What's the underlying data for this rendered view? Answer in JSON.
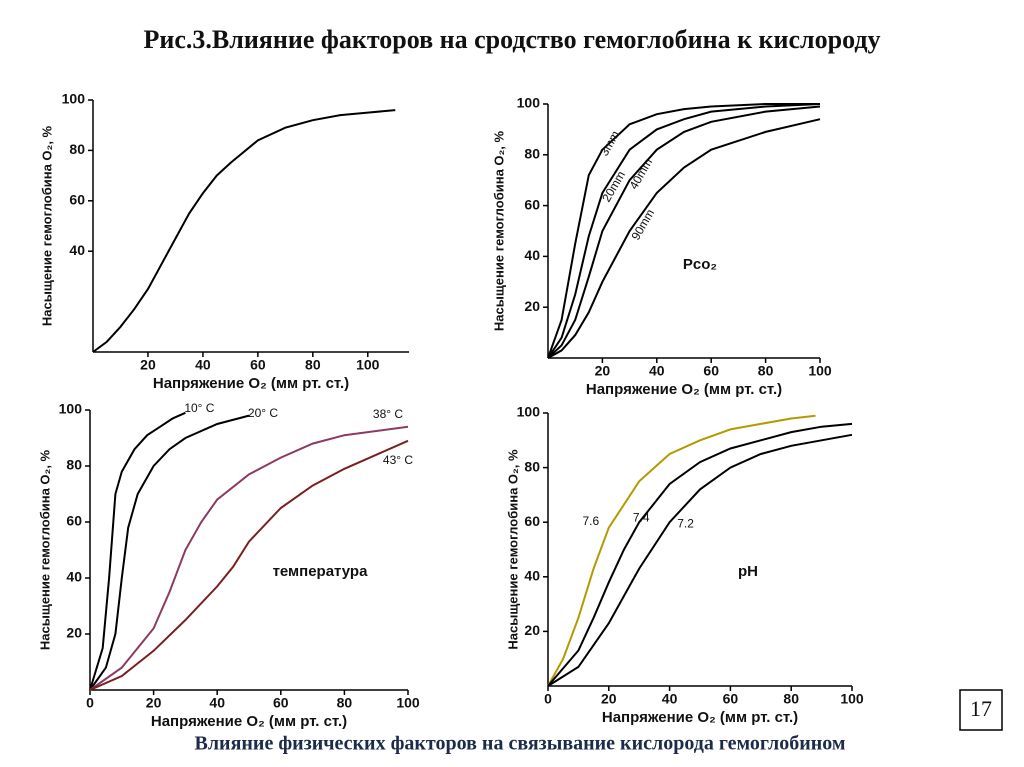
{
  "title": "Рис.3.Влияние факторов на сродство гемоглобина к кислороду",
  "chart_data": [
    {
      "type": "line",
      "x_label": "Напряжение O₂ (мм рт. ст.)",
      "y_label": "Насыщение гемоглобина O₂, %",
      "xlim": [
        0,
        115
      ],
      "ylim": [
        0,
        100
      ],
      "xticks": [
        20,
        40,
        60,
        80,
        100
      ],
      "yticks": [
        40,
        60,
        80,
        100
      ],
      "color": "#000000",
      "x": [
        0,
        5,
        10,
        15,
        20,
        25,
        30,
        35,
        40,
        45,
        50,
        60,
        70,
        80,
        90,
        100,
        110
      ],
      "values": [
        0,
        4,
        10,
        17,
        25,
        35,
        45,
        55,
        63,
        70,
        75,
        84,
        89,
        92,
        94,
        95,
        96
      ]
    },
    {
      "type": "line",
      "x_label": "Напряжение O₂ (мм рт. ст.)",
      "y_label": "Насыщение гемоглобина O₂, %",
      "annotation": "Pco₂",
      "xlim": [
        0,
        100
      ],
      "ylim": [
        0,
        100
      ],
      "xticks": [
        20,
        40,
        60,
        80,
        100
      ],
      "yticks": [
        20,
        40,
        60,
        80,
        100
      ],
      "series": [
        {
          "name": "3mm",
          "color": "#000000",
          "x": [
            0,
            5,
            10,
            15,
            20,
            30,
            40,
            50,
            60,
            80,
            100
          ],
          "values": [
            0,
            15,
            45,
            72,
            82,
            92,
            96,
            98,
            99,
            100,
            100
          ]
        },
        {
          "name": "20mm",
          "color": "#000000",
          "x": [
            0,
            5,
            10,
            15,
            20,
            30,
            40,
            50,
            60,
            80,
            100
          ],
          "values": [
            0,
            8,
            25,
            48,
            65,
            82,
            90,
            94,
            97,
            99,
            100
          ]
        },
        {
          "name": "40mm",
          "color": "#000000",
          "x": [
            0,
            5,
            10,
            15,
            20,
            30,
            40,
            50,
            60,
            80,
            100
          ],
          "values": [
            0,
            5,
            15,
            32,
            50,
            70,
            82,
            89,
            93,
            97,
            99
          ]
        },
        {
          "name": "90mm",
          "color": "#000000",
          "x": [
            0,
            5,
            10,
            15,
            20,
            30,
            40,
            50,
            60,
            80,
            100
          ],
          "values": [
            0,
            3,
            9,
            18,
            30,
            50,
            65,
            75,
            82,
            89,
            94
          ]
        }
      ]
    },
    {
      "type": "line",
      "x_label": "Напряжение O₂ (мм рт. ст.)",
      "y_label": "Насыщение гемоглобина O₂, %",
      "annotation": "температура",
      "xlim": [
        0,
        100
      ],
      "ylim": [
        0,
        100
      ],
      "xticks": [
        0,
        20,
        40,
        60,
        80,
        100
      ],
      "yticks": [
        20,
        40,
        60,
        80,
        100
      ],
      "series": [
        {
          "name": "10° C",
          "color": "#000000",
          "x": [
            0,
            4,
            6,
            8,
            10,
            14,
            18,
            22,
            26,
            30
          ],
          "values": [
            0,
            15,
            40,
            70,
            78,
            86,
            91,
            94,
            97,
            99
          ]
        },
        {
          "name": "20° C",
          "color": "#000000",
          "x": [
            0,
            5,
            8,
            10,
            12,
            15,
            20,
            25,
            30,
            40,
            50
          ],
          "values": [
            0,
            8,
            20,
            40,
            58,
            70,
            80,
            86,
            90,
            95,
            98
          ]
        },
        {
          "name": "38° C",
          "color": "#8b3a62",
          "x": [
            0,
            10,
            20,
            25,
            30,
            35,
            40,
            50,
            60,
            70,
            80,
            100
          ],
          "values": [
            0,
            8,
            22,
            35,
            50,
            60,
            68,
            77,
            83,
            88,
            91,
            94
          ]
        },
        {
          "name": "43° C",
          "color": "#7a1f1f",
          "x": [
            0,
            10,
            20,
            30,
            40,
            45,
            50,
            60,
            70,
            80,
            90,
            100
          ],
          "values": [
            0,
            5,
            14,
            25,
            37,
            44,
            53,
            65,
            73,
            79,
            84,
            89
          ]
        }
      ]
    },
    {
      "type": "line",
      "x_label": "Напряжение O₂ (мм рт. ст.)",
      "y_label": "Насыщение гемоглобина O₂, %",
      "annotation": "pH",
      "xlim": [
        0,
        100
      ],
      "ylim": [
        0,
        100
      ],
      "xticks": [
        0,
        20,
        40,
        60,
        80,
        100
      ],
      "yticks": [
        20,
        40,
        60,
        80,
        100
      ],
      "series": [
        {
          "name": "7.6",
          "color": "#b39a00",
          "x": [
            0,
            5,
            10,
            15,
            20,
            30,
            40,
            50,
            60,
            70,
            80,
            88
          ],
          "values": [
            0,
            10,
            25,
            43,
            58,
            75,
            85,
            90,
            94,
            96,
            98,
            99
          ]
        },
        {
          "name": "7.4",
          "color": "#000000",
          "x": [
            0,
            10,
            15,
            20,
            25,
            30,
            40,
            50,
            60,
            70,
            80,
            90,
            100
          ],
          "values": [
            0,
            13,
            25,
            38,
            50,
            60,
            74,
            82,
            87,
            90,
            93,
            95,
            96
          ]
        },
        {
          "name": "7.2",
          "color": "#000000",
          "x": [
            0,
            10,
            20,
            25,
            30,
            40,
            50,
            60,
            70,
            80,
            90,
            100
          ],
          "values": [
            0,
            7,
            23,
            33,
            43,
            60,
            72,
            80,
            85,
            88,
            90,
            92
          ]
        }
      ]
    }
  ],
  "caption": "Влияние физических факторов на связывание кислорода гемоглобином",
  "page_number": 17
}
